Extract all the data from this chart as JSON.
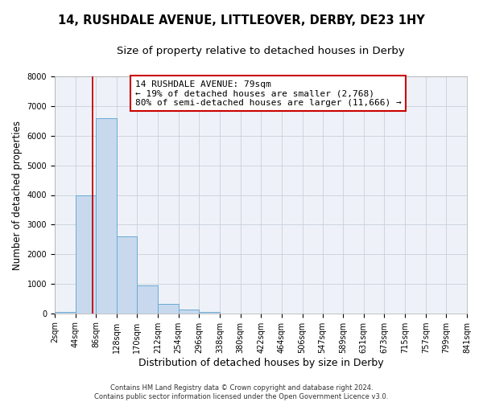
{
  "title": "14, RUSHDALE AVENUE, LITTLEOVER, DERBY, DE23 1HY",
  "subtitle": "Size of property relative to detached houses in Derby",
  "xlabel": "Distribution of detached houses by size in Derby",
  "ylabel": "Number of detached properties",
  "bin_edges": [
    2,
    44,
    86,
    128,
    170,
    212,
    254,
    296,
    338,
    380,
    422,
    464,
    506,
    547,
    589,
    631,
    673,
    715,
    757,
    799,
    841
  ],
  "bin_counts": [
    50,
    4000,
    6600,
    2600,
    950,
    310,
    120,
    60,
    0,
    0,
    0,
    0,
    0,
    0,
    0,
    0,
    0,
    0,
    0,
    0
  ],
  "bar_color": "#c8d9ee",
  "bar_edge_color": "#6aaad4",
  "vline_x": 79,
  "vline_color": "#cc0000",
  "ylim": [
    0,
    8000
  ],
  "yticks": [
    0,
    1000,
    2000,
    3000,
    4000,
    5000,
    6000,
    7000,
    8000
  ],
  "annotation_line1": "14 RUSHDALE AVENUE: 79sqm",
  "annotation_line2": "← 19% of detached houses are smaller (2,768)",
  "annotation_line3": "80% of semi-detached houses are larger (11,666) →",
  "footer_line1": "Contains HM Land Registry data © Crown copyright and database right 2024.",
  "footer_line2": "Contains public sector information licensed under the Open Government Licence v3.0.",
  "background_color": "#ffffff",
  "plot_bg_color": "#eef2f8",
  "grid_color": "#c8d0dc",
  "title_fontsize": 10.5,
  "subtitle_fontsize": 9.5,
  "tick_label_size": 7,
  "ylabel_fontsize": 8.5,
  "xlabel_fontsize": 9,
  "annot_fontsize": 8,
  "footer_fontsize": 6
}
